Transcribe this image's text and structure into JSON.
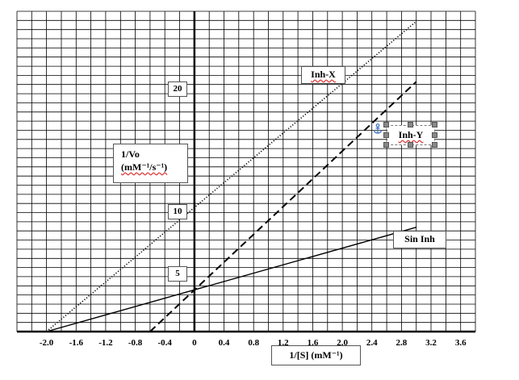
{
  "chart_data": {
    "type": "line",
    "title": "",
    "xlabel": "1/[S] (mM⁻¹)",
    "ylabel_line1": "1/Vo",
    "ylabel_line2": "(mM⁻¹/s⁻¹)",
    "xlim": [
      -2.4,
      3.8
    ],
    "ylim": [
      0,
      35
    ],
    "x_ticks": [
      {
        "value": -2.0,
        "label": "-2.0"
      },
      {
        "value": -1.6,
        "label": "-1.6"
      },
      {
        "value": -1.2,
        "label": "-1.2"
      },
      {
        "value": -0.8,
        "label": "-0.8"
      },
      {
        "value": -0.4,
        "label": "-0.4"
      },
      {
        "value": 0,
        "label": "0"
      },
      {
        "value": 0.4,
        "label": "0.4"
      },
      {
        "value": 0.8,
        "label": "0.8"
      },
      {
        "value": 1.2,
        "label": "1.2"
      },
      {
        "value": 1.6,
        "label": "1.6"
      },
      {
        "value": 2.0,
        "label": "2.0"
      },
      {
        "value": 2.4,
        "label": "2.4"
      },
      {
        "value": 2.8,
        "label": "2.8"
      },
      {
        "value": 3.2,
        "label": "3.2"
      },
      {
        "value": 3.6,
        "label": "3.6"
      }
    ],
    "y_value_labels": [
      {
        "value": 20,
        "label": "20"
      },
      {
        "value": 10,
        "label": "10"
      },
      {
        "value": 5,
        "label": "5"
      }
    ],
    "grid": true,
    "series": [
      {
        "name": "Inh-X",
        "style": "dotted",
        "x": [
          -2.0,
          3.0
        ],
        "y": [
          0,
          33.9
        ]
      },
      {
        "name": "Inh-Y",
        "style": "dashed",
        "x": [
          -0.6,
          3.0
        ],
        "y": [
          0,
          27.3
        ]
      },
      {
        "name": "Sin Inh",
        "style": "solid",
        "x": [
          -2.0,
          3.0
        ],
        "y": [
          0,
          11.4
        ]
      }
    ]
  },
  "colors": {
    "grid": "#000000",
    "axis": "#000000",
    "line": "#000000",
    "background": "#ffffff",
    "spellcheck_underline": "#d33333"
  }
}
